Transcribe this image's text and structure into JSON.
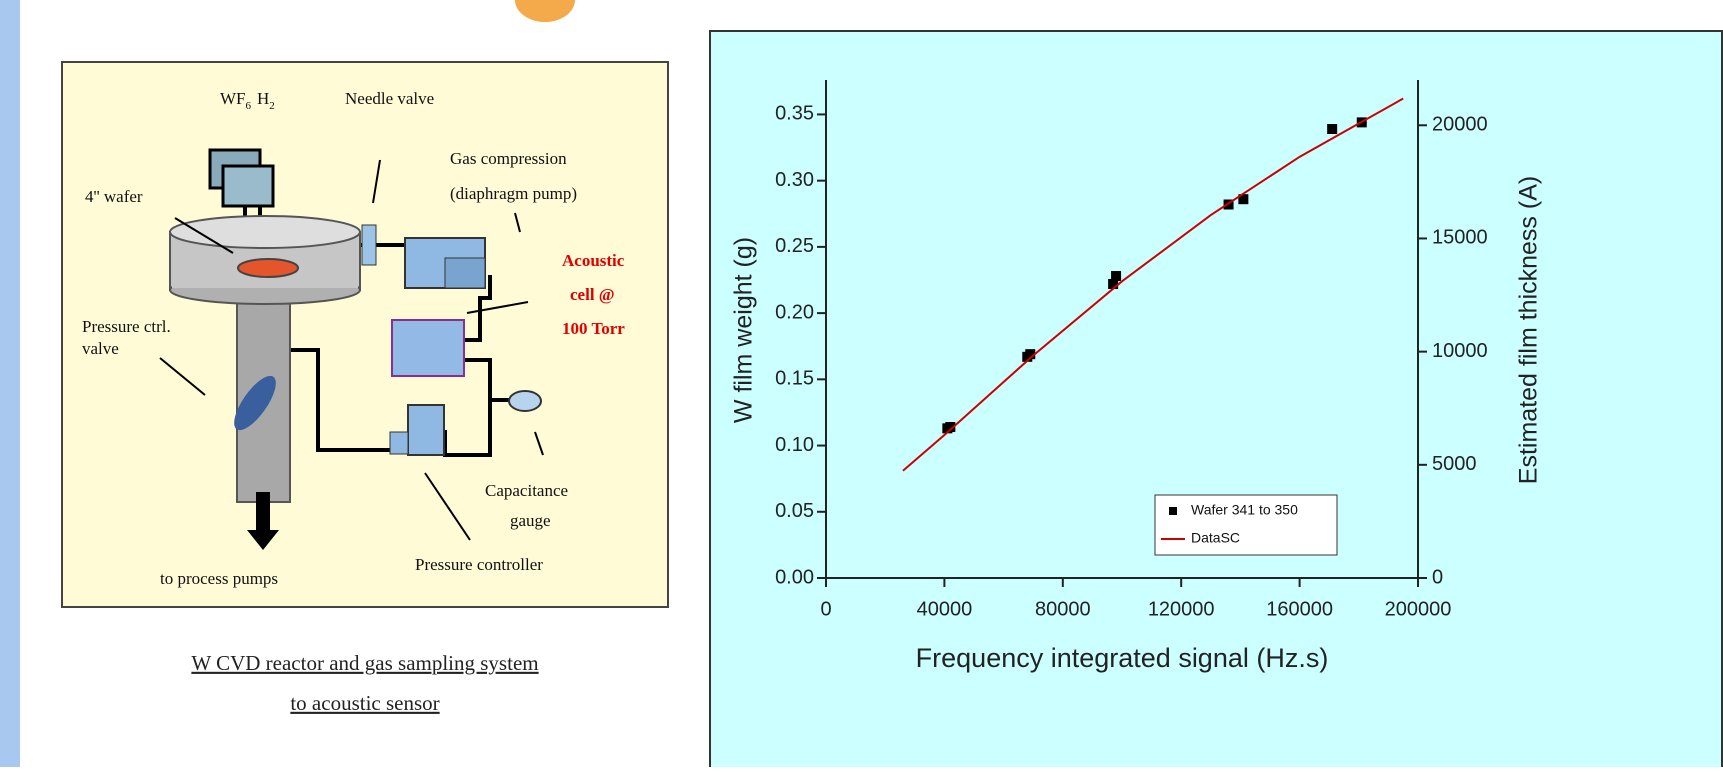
{
  "diagram": {
    "precursor": {
      "wf": "WF",
      "wf_sub": "6",
      "h": "H",
      "h_sub": "2"
    },
    "labels": {
      "needle_valve": "Needle valve",
      "wafer": "4'' wafer",
      "gas_compression": "Gas compression",
      "diaphragm_pump": "(diaphragm pump)",
      "acoustic": "Acoustic",
      "cell": "cell @",
      "torr": "100 Torr",
      "pressure_ctrl": "Pressure ctrl.",
      "valve": "valve",
      "capacitance": "Capacitance",
      "gauge": "gauge",
      "pressure_controller": "Pressure controller",
      "process_pumps": "to process pumps"
    },
    "caption": [
      "W CVD reactor and gas sampling system",
      "to acoustic sensor"
    ]
  },
  "chart_data": {
    "type": "scatter",
    "x_label": "Frequency integrated signal (Hz.s)",
    "y_label": "W film weight (g)",
    "y2_label": "Estimated film thickness (A)",
    "xlim": [
      0,
      200000
    ],
    "xticks": [
      0,
      40000,
      80000,
      120000,
      160000,
      200000
    ],
    "ylim": [
      0,
      0.376
    ],
    "yticks": [
      {
        "value": 0,
        "label": "0.00"
      },
      0.05,
      {
        "value": 0.1,
        "label": "0.10"
      },
      0.15,
      {
        "value": 0.2,
        "label": "0.20"
      },
      0.25,
      {
        "value": 0.3,
        "label": "0.30"
      },
      0.35
    ],
    "y2lim": [
      0,
      22000
    ],
    "y2ticks": [
      0,
      5000,
      10000,
      15000,
      20000
    ],
    "legend": "lower right",
    "series": [
      {
        "name": "Wafer 341 to 350",
        "mode": "markers",
        "color": "#000000",
        "x": [
          41000,
          42000,
          68000,
          69000,
          97000,
          98000,
          136000,
          141000,
          171000,
          181000
        ],
        "values": [
          0.113,
          0.114,
          0.167,
          0.169,
          0.222,
          0.228,
          0.282,
          0.286,
          0.339,
          0.344
        ]
      },
      {
        "name": "DataSC",
        "mode": "line",
        "color": "#cc0000",
        "x": [
          26000,
          40000,
          70000,
          100000,
          130000,
          160000,
          195000
        ],
        "values": [
          0.081,
          0.108,
          0.168,
          0.224,
          0.274,
          0.318,
          0.362
        ]
      }
    ]
  }
}
